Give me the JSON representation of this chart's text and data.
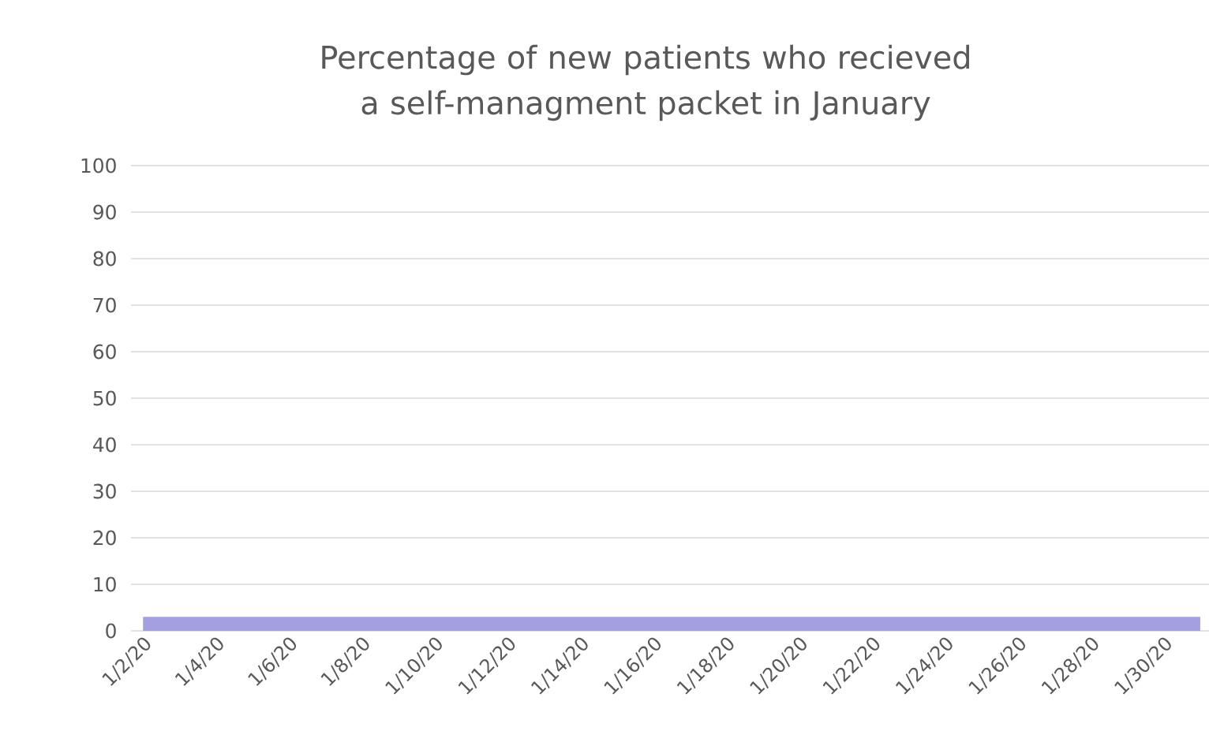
{
  "chart_data": {
    "type": "area",
    "title": "Percentage of new patients who recieved a self-managment packet in January",
    "categories": [
      "1/2/20",
      null,
      "1/4/20",
      null,
      "1/6/20",
      null,
      "1/8/20",
      null,
      "1/10/20",
      null,
      "1/12/20",
      null,
      "1/14/20",
      null,
      "1/16/20",
      null,
      "1/18/20",
      null,
      "1/20/20",
      null,
      "1/22/20",
      null,
      "1/24/20",
      null,
      "1/26/20",
      null,
      "1/28/20",
      null,
      "1/30/20",
      null
    ],
    "values": [
      3,
      3,
      3,
      3,
      3,
      3,
      3,
      3,
      3,
      3,
      3,
      3,
      3,
      3,
      3,
      3,
      3,
      3,
      3,
      3,
      3,
      3,
      3,
      3,
      3,
      3,
      3,
      3,
      3,
      3
    ],
    "color": "#a2a0de",
    "ylim": [
      0,
      100
    ],
    "yticks": [
      0,
      10,
      20,
      30,
      40,
      50,
      60,
      70,
      80,
      90,
      100
    ],
    "grid": "y"
  }
}
